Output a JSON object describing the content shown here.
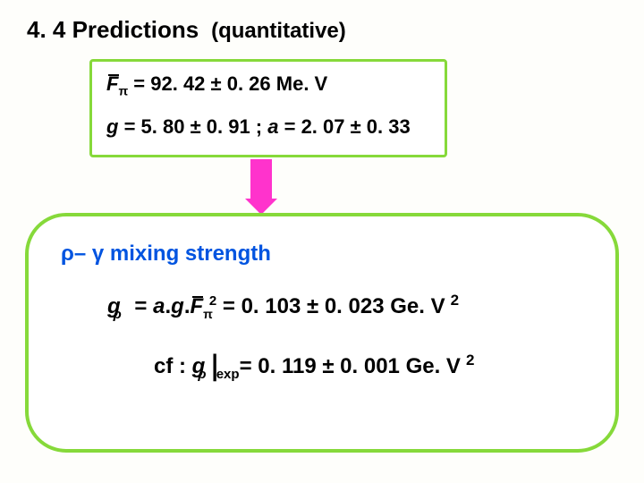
{
  "title": {
    "main": "4. 4 Predictions",
    "sub": "(quantitative)"
  },
  "box1": {
    "fpi_label_base": "F",
    "fpi_sub": "π",
    "fpi_value": " = 92. 42 ± 0. 26 Me. V",
    "g_label": "g",
    "g_value": " = 5. 80 ± 0. 91  ;  ",
    "a_label": "a",
    "a_value": " = 2. 07 ± 0. 33"
  },
  "box2": {
    "heading": "ρ– γ mixing strength",
    "eq": {
      "g": "g",
      "rho": "ρ",
      "eq1": " = ",
      "a": "a",
      "gmid": "g",
      "F": "F",
      "pi": "π",
      "sq": "2",
      "val": " = 0. 103 ± 0. 023 Ge. V",
      "sqend": "2"
    },
    "cf": {
      "prefix": "cf :   ",
      "g": "g",
      "rho": "ρ",
      "pipe": "|",
      "exp": "exp",
      "val": "= 0. 119 ± 0. 001 Ge. V",
      "sqend": "2"
    }
  },
  "colors": {
    "border": "#86d93a",
    "arrow": "#ff33cc",
    "heading": "#0054e0",
    "bg": "#fefefb"
  }
}
